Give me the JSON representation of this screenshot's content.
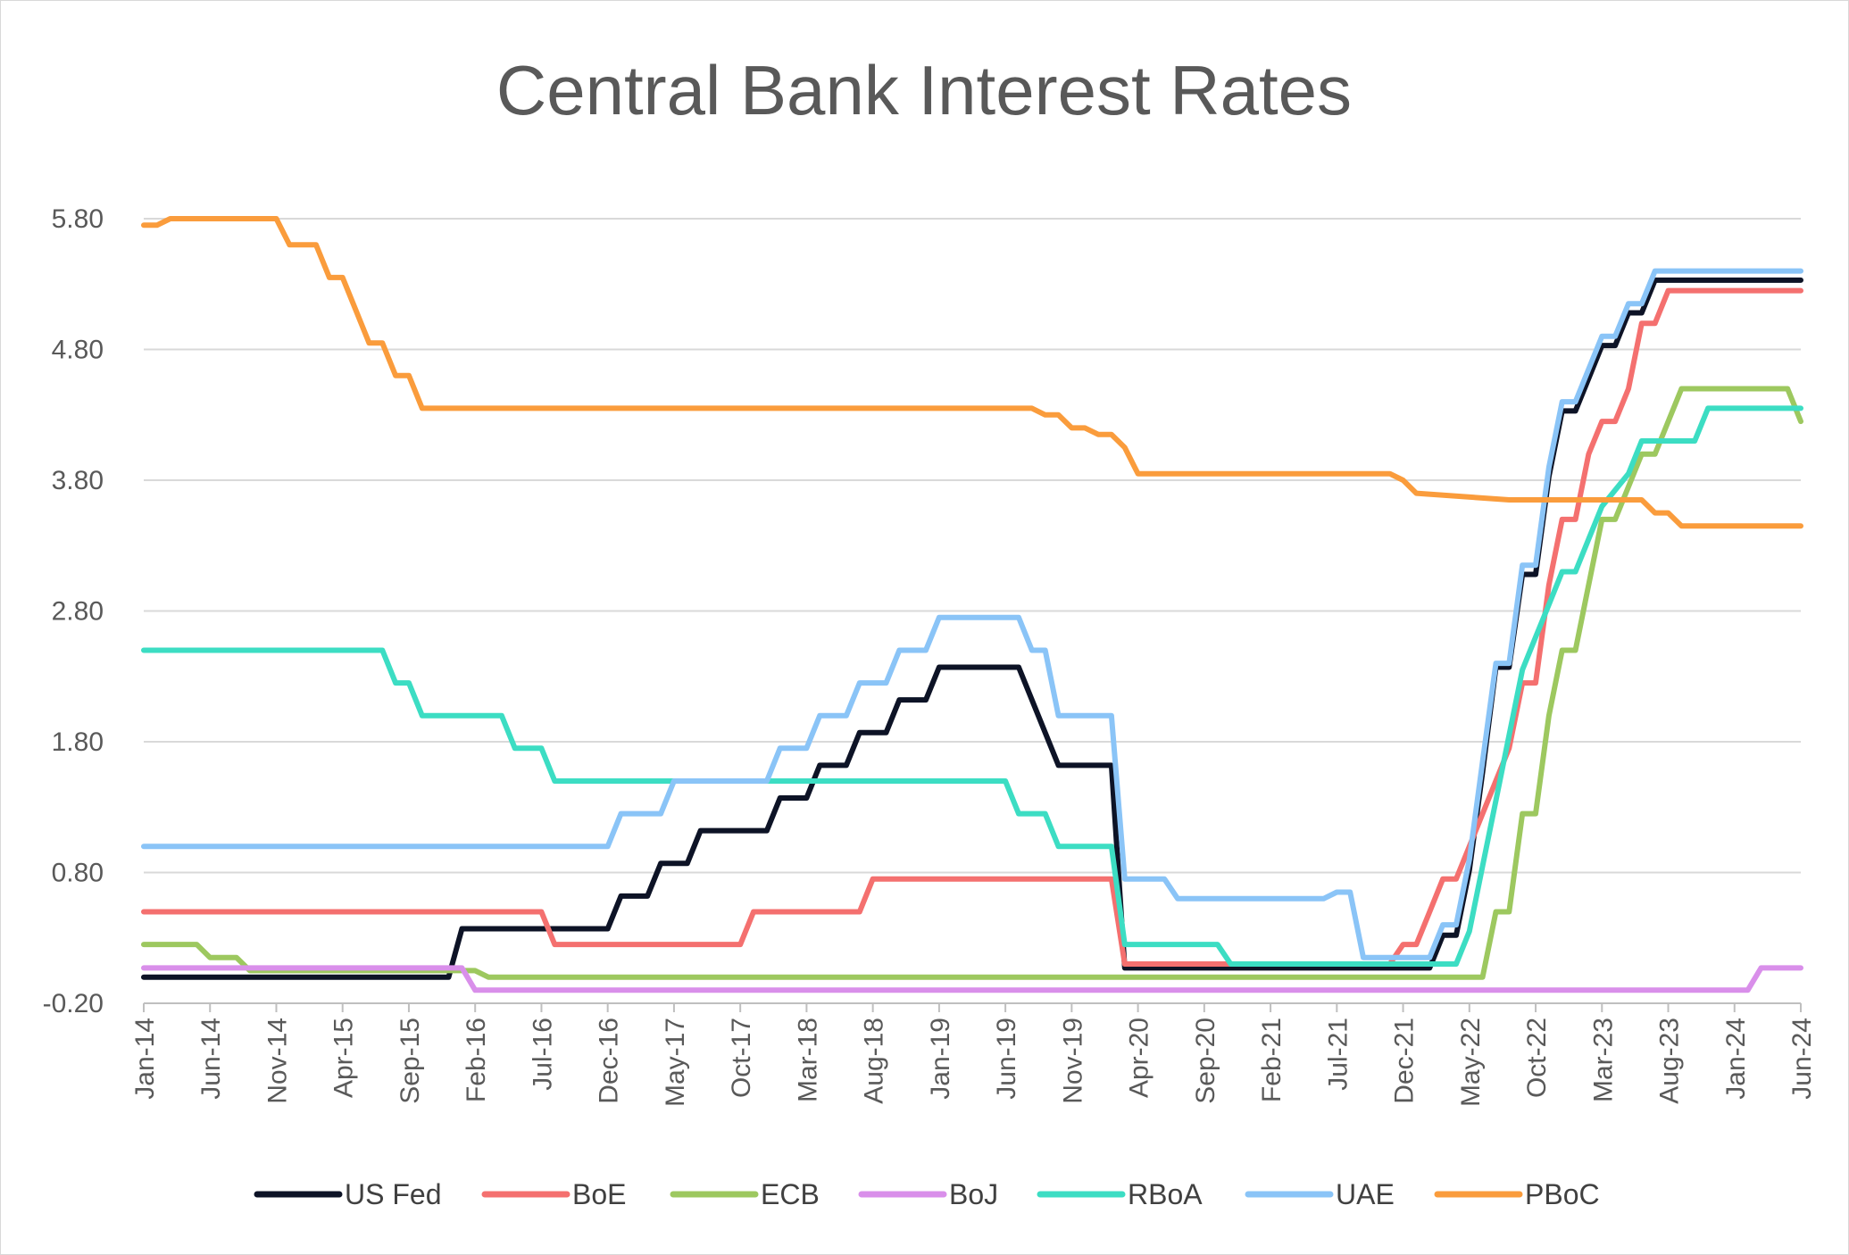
{
  "chart_data": {
    "type": "line",
    "title": "Central Bank Interest Rates",
    "xlabel": "",
    "ylabel": "",
    "ylim": [
      -0.2,
      5.8
    ],
    "yticks": [
      "5.80",
      "4.80",
      "3.80",
      "2.80",
      "1.80",
      "0.80",
      "-0.20"
    ],
    "x_range": [
      "Jan-14",
      "Jun-24"
    ],
    "x_tick_labels": [
      "Jan-14",
      "Jun-14",
      "Nov-14",
      "Apr-15",
      "Sep-15",
      "Feb-16",
      "Jul-16",
      "Dec-16",
      "May-17",
      "Oct-17",
      "Mar-18",
      "Aug-18",
      "Jan-19",
      "Jun-19",
      "Nov-19",
      "Apr-20",
      "Sep-20",
      "Feb-21",
      "Jul-21",
      "Dec-21",
      "May-22",
      "Oct-22",
      "Mar-23",
      "Aug-23",
      "Jan-24",
      "Jun-24"
    ],
    "grid": true,
    "legend_position": "bottom",
    "series": [
      {
        "name": "US Fed",
        "color": "#0d1326",
        "points": [
          [
            "Jan-14",
            0.0
          ],
          [
            "Dec-15",
            0.0
          ],
          [
            "Jan-16",
            0.37
          ],
          [
            "Dec-16",
            0.37
          ],
          [
            "Jan-17",
            0.62
          ],
          [
            "Mar-17",
            0.62
          ],
          [
            "Apr-17",
            0.87
          ],
          [
            "Jun-17",
            0.87
          ],
          [
            "Jul-17",
            1.12
          ],
          [
            "Dec-17",
            1.12
          ],
          [
            "Jan-18",
            1.37
          ],
          [
            "Mar-18",
            1.37
          ],
          [
            "Apr-18",
            1.62
          ],
          [
            "Jun-18",
            1.62
          ],
          [
            "Jul-18",
            1.87
          ],
          [
            "Sep-18",
            1.87
          ],
          [
            "Oct-18",
            2.12
          ],
          [
            "Dec-18",
            2.12
          ],
          [
            "Jan-19",
            2.37
          ],
          [
            "Jul-19",
            2.37
          ],
          [
            "Oct-19",
            1.62
          ],
          [
            "Feb-20",
            1.62
          ],
          [
            "Mar-20",
            0.07
          ],
          [
            "Feb-22",
            0.07
          ],
          [
            "Mar-22",
            0.32
          ],
          [
            "Apr-22",
            0.32
          ],
          [
            "May-22",
            0.82
          ],
          [
            "Jun-22",
            1.57
          ],
          [
            "Jul-22",
            2.37
          ],
          [
            "Aug-22",
            2.37
          ],
          [
            "Sep-22",
            3.08
          ],
          [
            "Oct-22",
            3.08
          ],
          [
            "Nov-22",
            3.83
          ],
          [
            "Dec-22",
            4.33
          ],
          [
            "Jan-23",
            4.33
          ],
          [
            "Mar-23",
            4.83
          ],
          [
            "Apr-23",
            4.83
          ],
          [
            "May-23",
            5.08
          ],
          [
            "Jun-23",
            5.08
          ],
          [
            "Jul-23",
            5.33
          ],
          [
            "Jun-24",
            5.33
          ]
        ]
      },
      {
        "name": "BoE",
        "color": "#f4706f",
        "points": [
          [
            "Jan-14",
            0.5
          ],
          [
            "Jul-16",
            0.5
          ],
          [
            "Aug-16",
            0.25
          ],
          [
            "Oct-17",
            0.25
          ],
          [
            "Nov-17",
            0.5
          ],
          [
            "Jul-18",
            0.5
          ],
          [
            "Aug-18",
            0.75
          ],
          [
            "Feb-20",
            0.75
          ],
          [
            "Mar-20",
            0.1
          ],
          [
            "Nov-21",
            0.1
          ],
          [
            "Dec-21",
            0.25
          ],
          [
            "Jan-22",
            0.25
          ],
          [
            "Feb-22",
            0.5
          ],
          [
            "Mar-22",
            0.75
          ],
          [
            "Apr-22",
            0.75
          ],
          [
            "May-22",
            1.0
          ],
          [
            "Jun-22",
            1.25
          ],
          [
            "Aug-22",
            1.75
          ],
          [
            "Sep-22",
            2.25
          ],
          [
            "Oct-22",
            2.25
          ],
          [
            "Nov-22",
            3.0
          ],
          [
            "Dec-22",
            3.5
          ],
          [
            "Jan-23",
            3.5
          ],
          [
            "Feb-23",
            4.0
          ],
          [
            "Mar-23",
            4.25
          ],
          [
            "Apr-23",
            4.25
          ],
          [
            "May-23",
            4.5
          ],
          [
            "Jun-23",
            5.0
          ],
          [
            "Jul-23",
            5.0
          ],
          [
            "Aug-23",
            5.25
          ],
          [
            "Jun-24",
            5.25
          ]
        ]
      },
      {
        "name": "ECB",
        "color": "#9dc85f",
        "points": [
          [
            "Jan-14",
            0.25
          ],
          [
            "May-14",
            0.25
          ],
          [
            "Jun-14",
            0.15
          ],
          [
            "Aug-14",
            0.15
          ],
          [
            "Sep-14",
            0.05
          ],
          [
            "Feb-16",
            0.05
          ],
          [
            "Mar-16",
            0.0
          ],
          [
            "Jun-22",
            0.0
          ],
          [
            "Jul-22",
            0.5
          ],
          [
            "Aug-22",
            0.5
          ],
          [
            "Sep-22",
            1.25
          ],
          [
            "Oct-22",
            1.25
          ],
          [
            "Nov-22",
            2.0
          ],
          [
            "Dec-22",
            2.5
          ],
          [
            "Jan-23",
            2.5
          ],
          [
            "Feb-23",
            3.0
          ],
          [
            "Mar-23",
            3.5
          ],
          [
            "Apr-23",
            3.5
          ],
          [
            "May-23",
            3.75
          ],
          [
            "Jun-23",
            4.0
          ],
          [
            "Jul-23",
            4.0
          ],
          [
            "Sep-23",
            4.5
          ],
          [
            "May-24",
            4.5
          ],
          [
            "Jun-24",
            4.25
          ]
        ]
      },
      {
        "name": "BoJ",
        "color": "#d98fea",
        "points": [
          [
            "Jan-14",
            0.07
          ],
          [
            "Jan-16",
            0.07
          ],
          [
            "Feb-16",
            -0.1
          ],
          [
            "Feb-24",
            -0.1
          ],
          [
            "Mar-24",
            0.07
          ],
          [
            "Jun-24",
            0.07
          ]
        ]
      },
      {
        "name": "RBoA",
        "color": "#3cddc3",
        "points": [
          [
            "Jan-14",
            2.5
          ],
          [
            "Jul-15",
            2.5
          ],
          [
            "Aug-15",
            2.25
          ],
          [
            "Sep-15",
            2.25
          ],
          [
            "Oct-15",
            2.0
          ],
          [
            "Apr-16",
            2.0
          ],
          [
            "May-16",
            1.75
          ],
          [
            "Jul-16",
            1.75
          ],
          [
            "Aug-16",
            1.5
          ],
          [
            "Jun-19",
            1.5
          ],
          [
            "Jul-19",
            1.25
          ],
          [
            "Sep-19",
            1.25
          ],
          [
            "Oct-19",
            1.0
          ],
          [
            "Feb-20",
            1.0
          ],
          [
            "Mar-20",
            0.25
          ],
          [
            "Oct-20",
            0.25
          ],
          [
            "Nov-20",
            0.1
          ],
          [
            "Apr-22",
            0.1
          ],
          [
            "May-22",
            0.35
          ],
          [
            "Jun-22",
            0.85
          ],
          [
            "Jul-22",
            1.35
          ],
          [
            "Aug-22",
            1.85
          ],
          [
            "Sep-22",
            2.35
          ],
          [
            "Oct-22",
            2.6
          ],
          [
            "Nov-22",
            2.85
          ],
          [
            "Dec-22",
            3.1
          ],
          [
            "Jan-23",
            3.1
          ],
          [
            "Feb-23",
            3.35
          ],
          [
            "Mar-23",
            3.6
          ],
          [
            "May-23",
            3.85
          ],
          [
            "Jun-23",
            4.1
          ],
          [
            "Oct-23",
            4.1
          ],
          [
            "Nov-23",
            4.35
          ],
          [
            "Jun-24",
            4.35
          ]
        ]
      },
      {
        "name": "UAE",
        "color": "#8ac4f7",
        "points": [
          [
            "Jan-14",
            1.0
          ],
          [
            "Dec-16",
            1.0
          ],
          [
            "Jan-17",
            1.25
          ],
          [
            "Apr-17",
            1.25
          ],
          [
            "May-17",
            1.5
          ],
          [
            "Dec-17",
            1.5
          ],
          [
            "Jan-18",
            1.75
          ],
          [
            "Mar-18",
            1.75
          ],
          [
            "Apr-18",
            2.0
          ],
          [
            "Jun-18",
            2.0
          ],
          [
            "Jul-18",
            2.25
          ],
          [
            "Sep-18",
            2.25
          ],
          [
            "Oct-18",
            2.5
          ],
          [
            "Dec-18",
            2.5
          ],
          [
            "Jan-19",
            2.75
          ],
          [
            "Jul-19",
            2.75
          ],
          [
            "Aug-19",
            2.5
          ],
          [
            "Sep-19",
            2.5
          ],
          [
            "Oct-19",
            2.0
          ],
          [
            "Feb-20",
            2.0
          ],
          [
            "Mar-20",
            0.75
          ],
          [
            "Jun-20",
            0.75
          ],
          [
            "Jul-20",
            0.6
          ],
          [
            "Jun-21",
            0.6
          ],
          [
            "Jul-21",
            0.65
          ],
          [
            "Aug-21",
            0.65
          ],
          [
            "Sep-21",
            0.15
          ],
          [
            "Feb-22",
            0.15
          ],
          [
            "Mar-22",
            0.4
          ],
          [
            "Apr-22",
            0.4
          ],
          [
            "May-22",
            0.9
          ],
          [
            "Jun-22",
            1.65
          ],
          [
            "Jul-22",
            2.4
          ],
          [
            "Aug-22",
            2.4
          ],
          [
            "Sep-22",
            3.15
          ],
          [
            "Oct-22",
            3.15
          ],
          [
            "Nov-22",
            3.9
          ],
          [
            "Dec-22",
            4.4
          ],
          [
            "Jan-23",
            4.4
          ],
          [
            "Feb-23",
            4.65
          ],
          [
            "Mar-23",
            4.9
          ],
          [
            "Apr-23",
            4.9
          ],
          [
            "May-23",
            5.15
          ],
          [
            "Jun-23",
            5.15
          ],
          [
            "Jul-23",
            5.4
          ],
          [
            "Jun-24",
            5.4
          ]
        ]
      },
      {
        "name": "PBoC",
        "color": "#fa9c3c",
        "points": [
          [
            "Jan-14",
            5.75
          ],
          [
            "Feb-14",
            5.75
          ],
          [
            "Mar-14",
            5.8
          ],
          [
            "Nov-14",
            5.8
          ],
          [
            "Dec-14",
            5.6
          ],
          [
            "Feb-15",
            5.6
          ],
          [
            "Mar-15",
            5.35
          ],
          [
            "Apr-15",
            5.35
          ],
          [
            "May-15",
            5.1
          ],
          [
            "Jun-15",
            4.85
          ],
          [
            "Jul-15",
            4.85
          ],
          [
            "Aug-15",
            4.6
          ],
          [
            "Sep-15",
            4.6
          ],
          [
            "Oct-15",
            4.35
          ],
          [
            "Aug-19",
            4.35
          ],
          [
            "Sep-19",
            4.3
          ],
          [
            "Oct-19",
            4.3
          ],
          [
            "Nov-19",
            4.2
          ],
          [
            "Dec-19",
            4.2
          ],
          [
            "Jan-20",
            4.15
          ],
          [
            "Feb-20",
            4.15
          ],
          [
            "Mar-20",
            4.05
          ],
          [
            "Apr-20",
            3.85
          ],
          [
            "Nov-21",
            3.85
          ],
          [
            "Dec-21",
            3.8
          ],
          [
            "Jan-22",
            3.7
          ],
          [
            "Aug-22",
            3.65
          ],
          [
            "Sep-22",
            3.65
          ],
          [
            "Jun-23",
            3.65
          ],
          [
            "Jul-23",
            3.55
          ],
          [
            "Aug-23",
            3.55
          ],
          [
            "Sep-23",
            3.45
          ],
          [
            "Jun-24",
            3.45
          ]
        ]
      }
    ]
  }
}
